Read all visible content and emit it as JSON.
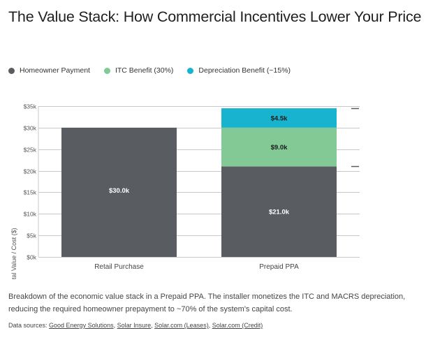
{
  "title": "The Value Stack: How Commercial Incentives Lower Your Price",
  "legend": [
    {
      "label": "Homeowner Payment",
      "color": "#595c61"
    },
    {
      "label": "ITC Benefit (30%)",
      "color": "#82c995"
    },
    {
      "label": "Depreciation Benefit (~15%)",
      "color": "#17b3cf"
    }
  ],
  "chart_data": {
    "type": "bar",
    "stacked": true,
    "title": "The Value Stack: How Commercial Incentives Lower Your Price",
    "xlabel": "",
    "ylabel": "Total Value / Cost ($)",
    "ylim": [
      0,
      35000
    ],
    "yticks": [
      0,
      5000,
      10000,
      15000,
      20000,
      25000,
      30000,
      35000
    ],
    "ytick_labels": [
      "$0k",
      "$5k",
      "$10k",
      "$15k",
      "$20k",
      "$25k",
      "$30k",
      "$35k"
    ],
    "grid": true,
    "legend_position": "top-left",
    "categories": [
      "Retail Purchase",
      "Prepaid PPA"
    ],
    "series": [
      {
        "name": "Homeowner Payment",
        "color": "#595c61",
        "values": [
          30000,
          21000
        ],
        "labels": [
          "$30.0k",
          "$21.0k"
        ]
      },
      {
        "name": "ITC Benefit (30%)",
        "color": "#82c995",
        "values": [
          0,
          9000
        ],
        "labels": [
          "",
          "$9.0k"
        ]
      },
      {
        "name": "Depreciation Benefit (~15%)",
        "color": "#17b3cf",
        "values": [
          0,
          4500
        ],
        "labels": [
          "",
          "$4.5k"
        ]
      }
    ],
    "reference_marks": [
      34500,
      21000
    ]
  },
  "caption": "Breakdown of the economic value stack in a Prepaid PPA. The installer monetizes the ITC and MACRS depreciation, reducing the required homeowner prepayment to ~70% of the system's capital cost.",
  "sources": {
    "prefix": "Data sources: ",
    "links": [
      "Good Energy Solutions",
      "Solar Insure",
      "Solar.com (Leases)",
      "Solar.com (Credit)"
    ]
  }
}
